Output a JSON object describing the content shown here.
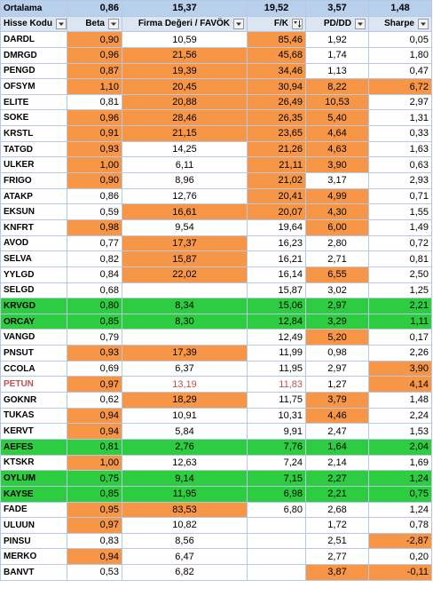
{
  "average": {
    "label": "Ortalama",
    "beta": "0,86",
    "firma": "15,37",
    "fk": "19,52",
    "pddd": "3,57",
    "sharpe": "1,48"
  },
  "headers": [
    {
      "key": "code",
      "label": "Hisse Kodu",
      "icon": "filter-dropdown-icon"
    },
    {
      "key": "beta",
      "label": "Beta",
      "icon": "filter-dropdown-icon"
    },
    {
      "key": "firma",
      "label": "Firma Değeri / FAVÖK",
      "icon": "filter-dropdown-icon"
    },
    {
      "key": "fk",
      "label": "F/K",
      "icon": "sort-descending-icon"
    },
    {
      "key": "pddd",
      "label": "PD/DD",
      "icon": "filter-dropdown-icon"
    },
    {
      "key": "sharpe",
      "label": "Sharpe",
      "icon": "filter-dropdown-icon"
    }
  ],
  "highlight_color": "#f79646",
  "green_color": "#2ecc40",
  "rows": [
    {
      "code": "DARDL",
      "beta": "0,90",
      "firma": "10,59",
      "fk": "85,46",
      "pddd": "1,92",
      "sharpe": "0,05",
      "hl": [
        1,
        3
      ]
    },
    {
      "code": "DMRGD",
      "beta": "0,96",
      "firma": "21,56",
      "fk": "45,68",
      "pddd": "1,74",
      "sharpe": "1,80",
      "hl": [
        1,
        2,
        3
      ]
    },
    {
      "code": "PENGD",
      "beta": "0,87",
      "firma": "19,39",
      "fk": "34,46",
      "pddd": "1,13",
      "sharpe": "0,47",
      "hl": [
        1,
        2,
        3
      ]
    },
    {
      "code": "OFSYM",
      "beta": "1,10",
      "firma": "20,45",
      "fk": "30,94",
      "pddd": "8,22",
      "sharpe": "6,72",
      "hl": [
        1,
        2,
        3,
        4,
        5
      ]
    },
    {
      "code": "ELITE",
      "beta": "0,81",
      "firma": "20,88",
      "fk": "26,49",
      "pddd": "10,53",
      "sharpe": "2,97",
      "hl": [
        2,
        3,
        4
      ]
    },
    {
      "code": "SOKE",
      "beta": "0,96",
      "firma": "28,46",
      "fk": "26,35",
      "pddd": "5,40",
      "sharpe": "1,31",
      "hl": [
        1,
        2,
        3,
        4
      ]
    },
    {
      "code": "KRSTL",
      "beta": "0,91",
      "firma": "21,15",
      "fk": "23,65",
      "pddd": "4,64",
      "sharpe": "0,33",
      "hl": [
        1,
        2,
        3,
        4
      ]
    },
    {
      "code": "TATGD",
      "beta": "0,93",
      "firma": "14,25",
      "fk": "21,26",
      "pddd": "4,63",
      "sharpe": "1,63",
      "hl": [
        1,
        3,
        4
      ]
    },
    {
      "code": "ULKER",
      "beta": "1,00",
      "firma": "6,11",
      "fk": "21,11",
      "pddd": "3,90",
      "sharpe": "0,63",
      "hl": [
        1,
        3,
        4
      ]
    },
    {
      "code": "FRIGO",
      "beta": "0,90",
      "firma": "8,96",
      "fk": "21,02",
      "pddd": "3,17",
      "sharpe": "2,93",
      "hl": [
        1,
        3
      ]
    },
    {
      "code": "ATAKP",
      "beta": "0,86",
      "firma": "12,76",
      "fk": "20,41",
      "pddd": "4,99",
      "sharpe": "0,71",
      "hl": [
        3,
        4
      ]
    },
    {
      "code": "EKSUN",
      "beta": "0,59",
      "firma": "16,61",
      "fk": "20,07",
      "pddd": "4,30",
      "sharpe": "1,55",
      "hl": [
        2,
        3,
        4
      ]
    },
    {
      "code": "KNFRT",
      "beta": "0,98",
      "firma": "9,54",
      "fk": "19,64",
      "pddd": "6,00",
      "sharpe": "1,49",
      "hl": [
        1,
        4
      ]
    },
    {
      "code": "AVOD",
      "beta": "0,77",
      "firma": "17,37",
      "fk": "16,23",
      "pddd": "2,80",
      "sharpe": "0,72",
      "hl": [
        2
      ]
    },
    {
      "code": "SELVA",
      "beta": "0,82",
      "firma": "15,87",
      "fk": "16,21",
      "pddd": "2,71",
      "sharpe": "0,81",
      "hl": [
        2
      ]
    },
    {
      "code": "YYLGD",
      "beta": "0,84",
      "firma": "22,02",
      "fk": "16,14",
      "pddd": "6,55",
      "sharpe": "2,50",
      "hl": [
        2,
        4
      ]
    },
    {
      "code": "SELGD",
      "beta": "0,68",
      "firma": "",
      "fk": "15,87",
      "pddd": "3,02",
      "sharpe": "1,25",
      "hl": []
    },
    {
      "code": "KRVGD",
      "beta": "0,80",
      "firma": "8,34",
      "fk": "15,06",
      "pddd": "2,97",
      "sharpe": "2,21",
      "hl": [],
      "green": true
    },
    {
      "code": "ORCAY",
      "beta": "0,85",
      "firma": "8,30",
      "fk": "12,84",
      "pddd": "3,29",
      "sharpe": "1,11",
      "hl": [],
      "green": true
    },
    {
      "code": "VANGD",
      "beta": "0,79",
      "firma": "",
      "fk": "12,49",
      "pddd": "5,20",
      "sharpe": "0,17",
      "hl": [
        4
      ]
    },
    {
      "code": "PNSUT",
      "beta": "0,93",
      "firma": "17,39",
      "fk": "11,99",
      "pddd": "0,98",
      "sharpe": "2,26",
      "hl": [
        1,
        2
      ]
    },
    {
      "code": "CCOLA",
      "beta": "0,69",
      "firma": "6,37",
      "fk": "11,95",
      "pddd": "2,97",
      "sharpe": "3,90",
      "hl": [
        5
      ]
    },
    {
      "code": "PETUN",
      "beta": "0,97",
      "firma": "13,19",
      "fk": "11,83",
      "pddd": "1,27",
      "sharpe": "4,14",
      "hl": [
        1,
        5
      ],
      "red": true
    },
    {
      "code": "GOKNR",
      "beta": "0,62",
      "firma": "18,29",
      "fk": "11,75",
      "pddd": "3,79",
      "sharpe": "1,48",
      "hl": [
        2,
        4
      ]
    },
    {
      "code": "TUKAS",
      "beta": "0,94",
      "firma": "10,91",
      "fk": "10,31",
      "pddd": "4,46",
      "sharpe": "2,24",
      "hl": [
        1,
        4
      ]
    },
    {
      "code": "KERVT",
      "beta": "0,94",
      "firma": "5,84",
      "fk": "9,91",
      "pddd": "2,47",
      "sharpe": "1,53",
      "hl": [
        1
      ]
    },
    {
      "code": "AEFES",
      "beta": "0,81",
      "firma": "2,76",
      "fk": "7,76",
      "pddd": "1,64",
      "sharpe": "2,04",
      "hl": [],
      "green": true
    },
    {
      "code": "KTSKR",
      "beta": "1,00",
      "firma": "12,63",
      "fk": "7,24",
      "pddd": "2,14",
      "sharpe": "1,69",
      "hl": [
        1
      ]
    },
    {
      "code": "OYLUM",
      "beta": "0,75",
      "firma": "9,14",
      "fk": "7,15",
      "pddd": "2,27",
      "sharpe": "1,24",
      "hl": [],
      "green": true
    },
    {
      "code": "KAYSE",
      "beta": "0,85",
      "firma": "11,95",
      "fk": "6,98",
      "pddd": "2,21",
      "sharpe": "0,75",
      "hl": [],
      "green": true
    },
    {
      "code": "FADE",
      "beta": "0,95",
      "firma": "83,53",
      "fk": "6,80",
      "pddd": "2,68",
      "sharpe": "1,24",
      "hl": [
        1,
        2
      ]
    },
    {
      "code": "ULUUN",
      "beta": "0,97",
      "firma": "10,82",
      "fk": "",
      "pddd": "1,72",
      "sharpe": "0,78",
      "hl": [
        1
      ]
    },
    {
      "code": "PINSU",
      "beta": "0,83",
      "firma": "8,56",
      "fk": "",
      "pddd": "2,51",
      "sharpe": "-2,87",
      "hl": [
        5
      ]
    },
    {
      "code": "MERKO",
      "beta": "0,94",
      "firma": "6,47",
      "fk": "",
      "pddd": "2,77",
      "sharpe": "0,20",
      "hl": [
        1
      ]
    },
    {
      "code": "BANVT",
      "beta": "0,53",
      "firma": "6,82",
      "fk": "",
      "pddd": "3,87",
      "sharpe": "-0,11",
      "hl": [
        4,
        5
      ]
    }
  ]
}
